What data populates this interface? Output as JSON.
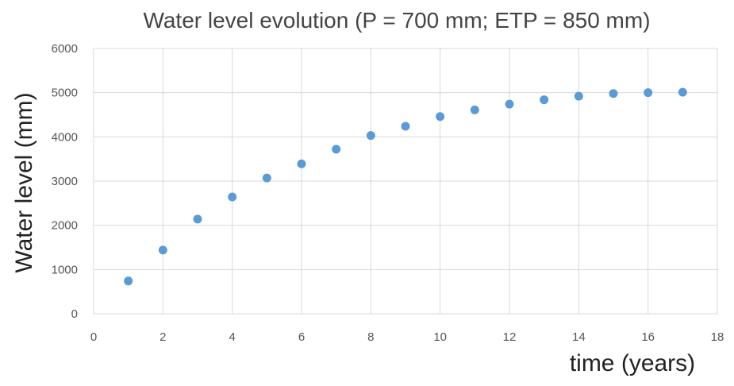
{
  "chart_data": {
    "type": "scatter",
    "title": "Water level evolution (P = 700 mm; ETP = 850 mm)",
    "xlabel": "time (years)",
    "ylabel": "Water level (mm)",
    "xlim": [
      0,
      18
    ],
    "ylim": [
      0,
      6000
    ],
    "xticks": [
      0,
      2,
      4,
      6,
      8,
      10,
      12,
      14,
      16,
      18
    ],
    "yticks": [
      0,
      1000,
      2000,
      3000,
      4000,
      5000,
      6000
    ],
    "grid": true,
    "marker_color": "#5b9bd5",
    "series": [
      {
        "x": [
          1,
          2,
          3,
          4,
          5,
          6,
          7,
          8,
          9,
          10,
          11,
          12,
          13,
          14,
          15,
          16,
          17
        ],
        "y": [
          740,
          1440,
          2140,
          2640,
          3070,
          3390,
          3720,
          4030,
          4240,
          4460,
          4610,
          4740,
          4840,
          4920,
          4980,
          5000,
          5010
        ]
      }
    ]
  }
}
